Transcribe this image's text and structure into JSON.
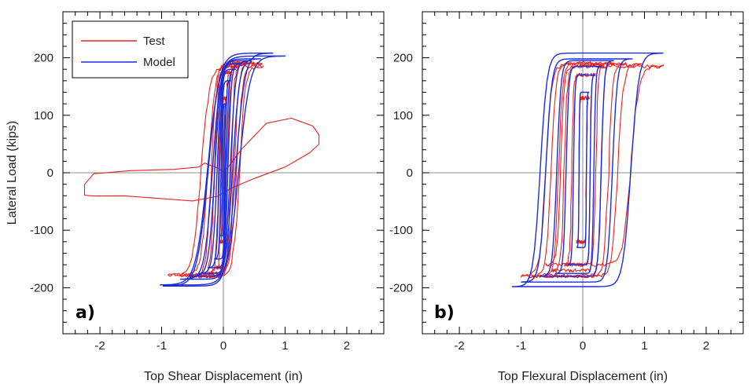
{
  "chart_data": [
    {
      "type": "line",
      "panel_label": "a)",
      "xlabel": "Top Shear Displacement (in)",
      "ylabel": "Lateral Load (kips)",
      "xlim": [
        -2.6,
        2.6
      ],
      "ylim": [
        -280,
        280
      ],
      "xticks": [
        -2,
        -1,
        0,
        1,
        2
      ],
      "yticks": [
        -200,
        -100,
        0,
        100,
        200
      ],
      "grid": false,
      "zero_lines": true,
      "legend_position": "top-left",
      "series": [
        {
          "name": "Test",
          "color": "#e8231f",
          "loops": [
            {
              "amp_pos": 0.05,
              "load_pos": 130,
              "amp_neg": -0.05,
              "load_neg": -120,
              "pinch": 0.3
            },
            {
              "amp_pos": 0.12,
              "load_pos": 175,
              "amp_neg": -0.12,
              "load_neg": -165,
              "pinch": 0.3
            },
            {
              "amp_pos": 0.22,
              "load_pos": 185,
              "amp_neg": -0.25,
              "load_neg": -175,
              "pinch": 0.3
            },
            {
              "amp_pos": 0.35,
              "load_pos": 190,
              "amp_neg": -0.4,
              "load_neg": -180,
              "pinch": 0.35
            },
            {
              "amp_pos": 0.5,
              "load_pos": 192,
              "amp_neg": -0.55,
              "load_neg": -180,
              "pinch": 0.35
            },
            {
              "amp_pos": 0.62,
              "load_pos": 190,
              "amp_neg": -0.7,
              "load_neg": -178,
              "pinch": 0.35
            },
            {
              "amp_pos": 0.65,
              "load_pos": 185,
              "amp_neg": -0.9,
              "load_neg": -178,
              "pinch": 0.4
            }
          ],
          "final_excursion": {
            "x": [
              0.0,
              0.3,
              0.7,
              1.1,
              1.45,
              1.55,
              1.55,
              1.4,
              1.0,
              0.5,
              0.15,
              -0.1,
              -0.5,
              -1.0,
              -1.6,
              -2.1,
              -2.25,
              -2.25,
              -2.1,
              -1.5,
              -0.8,
              -0.4,
              -0.3,
              -0.1,
              0.05
            ],
            "y": [
              0,
              40,
              88,
              95,
              80,
              65,
              50,
              35,
              12,
              -10,
              -25,
              -40,
              -47,
              -46,
              -42,
              -40,
              -38,
              -20,
              0,
              5,
              7,
              10,
              15,
              8,
              0
            ]
          }
        },
        {
          "name": "Model",
          "color": "#1c2ddb",
          "loops": [
            {
              "amp_pos": 0.05,
              "load_pos": 120,
              "amp_neg": -0.05,
              "load_neg": -110,
              "pinch": 0.25
            },
            {
              "amp_pos": 0.12,
              "load_pos": 160,
              "amp_neg": -0.15,
              "load_neg": -150,
              "pinch": 0.25
            },
            {
              "amp_pos": 0.2,
              "load_pos": 180,
              "amp_neg": -0.25,
              "load_neg": -165,
              "pinch": 0.25
            },
            {
              "amp_pos": 0.3,
              "load_pos": 190,
              "amp_neg": -0.4,
              "load_neg": -175,
              "pinch": 0.25
            },
            {
              "amp_pos": 0.45,
              "load_pos": 195,
              "amp_neg": -0.55,
              "load_neg": -180,
              "pinch": 0.25
            },
            {
              "amp_pos": 0.6,
              "load_pos": 198,
              "amp_neg": -0.7,
              "load_neg": -185,
              "pinch": 0.25
            },
            {
              "amp_pos": 0.8,
              "load_pos": 208,
              "amp_neg": -0.98,
              "load_neg": -197,
              "pinch": 0.25
            },
            {
              "amp_pos": 1.0,
              "load_pos": 203,
              "amp_neg": -1.03,
              "load_neg": -195,
              "pinch": 0.25
            }
          ]
        }
      ]
    },
    {
      "type": "line",
      "panel_label": "b)",
      "xlabel": "Top Flexural Displacement (in)",
      "ylabel": "",
      "xlim": [
        -2.6,
        2.6
      ],
      "ylim": [
        -280,
        280
      ],
      "xticks": [
        -2,
        -1,
        0,
        1,
        2
      ],
      "yticks": [
        -200,
        -100,
        0,
        100,
        200
      ],
      "grid": false,
      "zero_lines": true,
      "series": [
        {
          "name": "Test",
          "color": "#e8231f",
          "loops": [
            {
              "amp_pos": 0.1,
              "load_pos": 130,
              "amp_neg": -0.1,
              "load_neg": -120,
              "pinch": 0.6
            },
            {
              "amp_pos": 0.2,
              "load_pos": 170,
              "amp_neg": -0.3,
              "load_neg": -160,
              "pinch": 0.6
            },
            {
              "amp_pos": 0.35,
              "load_pos": 185,
              "amp_neg": -0.5,
              "load_neg": -170,
              "pinch": 0.6
            },
            {
              "amp_pos": 0.5,
              "load_pos": 190,
              "amp_neg": -0.65,
              "load_neg": -178,
              "pinch": 0.6
            },
            {
              "amp_pos": 0.7,
              "load_pos": 190,
              "amp_neg": -0.85,
              "load_neg": -180,
              "pinch": 0.6
            },
            {
              "amp_pos": 0.95,
              "load_pos": 188,
              "amp_neg": -1.0,
              "load_neg": -180,
              "pinch": 0.6
            },
            {
              "amp_pos": 1.3,
              "load_pos": 185,
              "amp_neg": -0.6,
              "load_neg": -160,
              "pinch": 0.6
            }
          ]
        },
        {
          "name": "Model",
          "color": "#1c2ddb",
          "loops": [
            {
              "amp_pos": 0.1,
              "load_pos": 140,
              "amp_neg": -0.1,
              "load_neg": -130,
              "pinch": 0.6
            },
            {
              "amp_pos": 0.2,
              "load_pos": 170,
              "amp_neg": -0.25,
              "load_neg": -160,
              "pinch": 0.6
            },
            {
              "amp_pos": 0.3,
              "load_pos": 185,
              "amp_neg": -0.45,
              "load_neg": -175,
              "pinch": 0.6
            },
            {
              "amp_pos": 0.5,
              "load_pos": 195,
              "amp_neg": -0.7,
              "load_neg": -180,
              "pinch": 0.6
            },
            {
              "amp_pos": 0.8,
              "load_pos": 198,
              "amp_neg": -1.0,
              "load_neg": -190,
              "pinch": 0.6
            },
            {
              "amp_pos": 1.3,
              "load_pos": 208,
              "amp_neg": -1.15,
              "load_neg": -198,
              "pinch": 0.6
            }
          ]
        }
      ]
    }
  ]
}
